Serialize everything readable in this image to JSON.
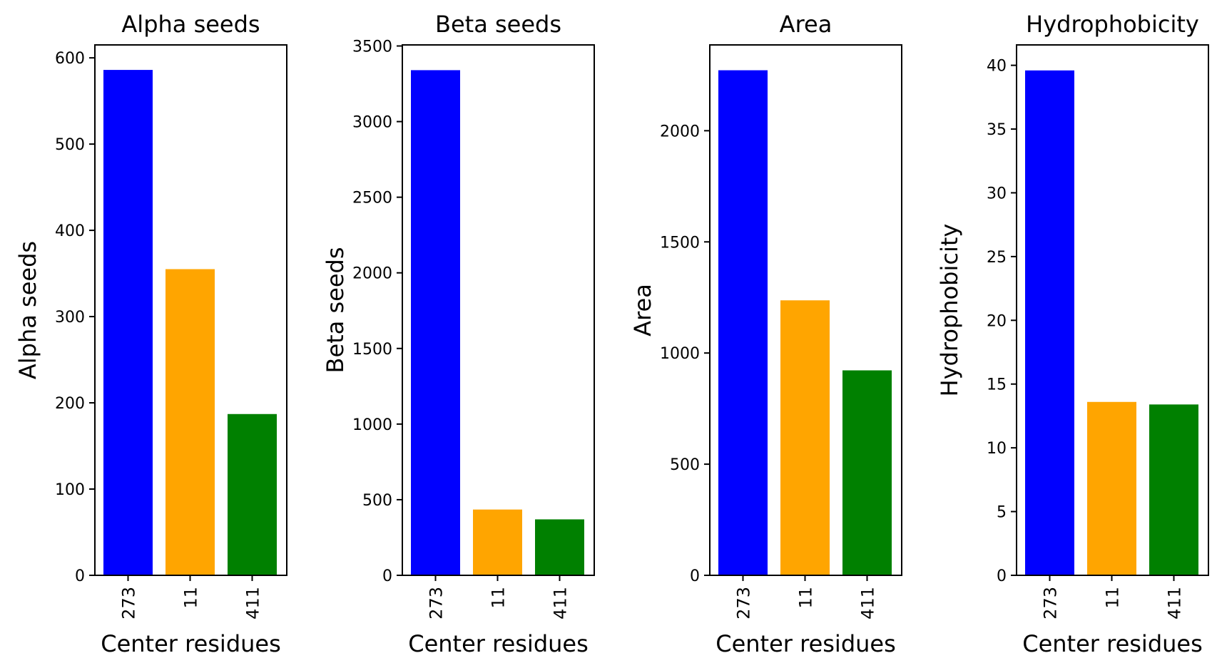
{
  "chart_data": [
    {
      "type": "bar",
      "title": "Alpha seeds",
      "xlabel": "Center residues",
      "ylabel": "Alpha seeds",
      "categories": [
        "273",
        "11",
        "411"
      ],
      "values": [
        586,
        355,
        187
      ],
      "colors": [
        "#0000ff",
        "#ffa500",
        "#008000"
      ],
      "ylim": [
        0,
        615
      ],
      "yticks": [
        0,
        100,
        200,
        300,
        400,
        500,
        600
      ]
    },
    {
      "type": "bar",
      "title": "Beta seeds",
      "xlabel": "Center residues",
      "ylabel": "Beta seeds",
      "categories": [
        "273",
        "11",
        "411"
      ],
      "values": [
        3340,
        435,
        370
      ],
      "colors": [
        "#0000ff",
        "#ffa500",
        "#008000"
      ],
      "ylim": [
        0,
        3507
      ],
      "yticks": [
        0,
        500,
        1000,
        1500,
        2000,
        2500,
        3000,
        3500
      ]
    },
    {
      "type": "bar",
      "title": "Area",
      "xlabel": "Center residues",
      "ylabel": "Area",
      "categories": [
        "273",
        "11",
        "411"
      ],
      "values": [
        2272,
        1237,
        922
      ],
      "colors": [
        "#0000ff",
        "#ffa500",
        "#008000"
      ],
      "ylim": [
        0,
        2386
      ],
      "yticks": [
        0,
        500,
        1000,
        1500,
        2000
      ]
    },
    {
      "type": "bar",
      "title": "Hydrophobicity",
      "xlabel": "Center residues",
      "ylabel": "Hydrophobicity",
      "categories": [
        "273",
        "11",
        "411"
      ],
      "values": [
        39.6,
        13.6,
        13.4
      ],
      "colors": [
        "#0000ff",
        "#ffa500",
        "#008000"
      ],
      "ylim": [
        0,
        41.6
      ],
      "yticks": [
        0,
        5,
        10,
        15,
        20,
        25,
        30,
        35,
        40
      ]
    }
  ]
}
